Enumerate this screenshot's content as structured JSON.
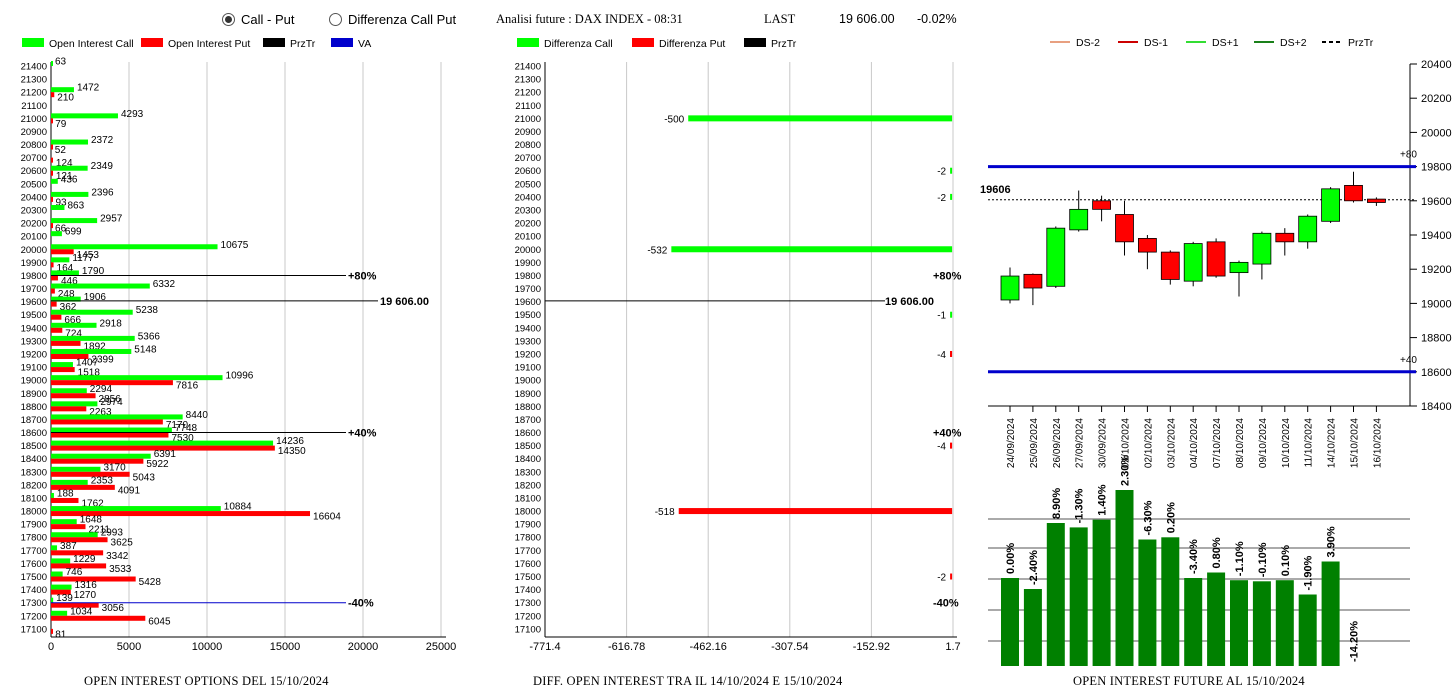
{
  "header": {
    "radio_call_put": "Call - Put",
    "radio_diff": "Differenza Call Put",
    "selected": "call_put",
    "title": "Analisi future : DAX INDEX - 08:31",
    "last_label": "LAST",
    "last_value": "19 606.00",
    "change": "-0.02%"
  },
  "captions": {
    "left": "OPEN INTEREST OPTIONS DEL 15/10/2024",
    "middle": "DIFF. OPEN INTEREST TRA IL 14/10/2024 E 15/10/2024",
    "right": "OPEN INTEREST FUTURE AL 15/10/2024"
  },
  "colors": {
    "call": "#00ff00",
    "put": "#ff0000",
    "prztr": "#000000",
    "va": "#0000cc",
    "future_bar": "#008000",
    "ds_minus2": "#e8a080",
    "ds_minus1": "#cc0000",
    "ds_plus1": "#33dd33",
    "ds_plus2": "#1a801a",
    "grid": "#aaaaaa"
  },
  "chart_data": [
    {
      "type": "bar",
      "orientation": "horizontal",
      "legend": [
        "Open Interest Call",
        "Open Interest Put",
        "PrzTr",
        "VA"
      ],
      "categories": [
        21400,
        21300,
        21200,
        21100,
        21000,
        20900,
        20800,
        20700,
        20600,
        20500,
        20400,
        20300,
        20200,
        20100,
        20000,
        19900,
        19800,
        19700,
        19600,
        19500,
        19400,
        19300,
        19200,
        19100,
        19000,
        18900,
        18800,
        18700,
        18600,
        18500,
        18400,
        18300,
        18200,
        18100,
        18000,
        17900,
        17800,
        17700,
        17600,
        17500,
        17400,
        17300,
        17200,
        17100
      ],
      "series": [
        {
          "name": "Open Interest Call",
          "values": [
            63,
            null,
            1472,
            null,
            4293,
            null,
            2372,
            null,
            2349,
            436,
            2396,
            863,
            2957,
            699,
            10675,
            1177,
            1790,
            6332,
            1906,
            5238,
            2918,
            5366,
            5148,
            1407,
            10996,
            2294,
            2974,
            8440,
            7748,
            14236,
            6391,
            3170,
            2353,
            188,
            10884,
            1648,
            2993,
            387,
            1229,
            746,
            1316,
            139,
            1034,
            null
          ]
        },
        {
          "name": "Open Interest Put",
          "values": [
            null,
            null,
            210,
            null,
            79,
            null,
            52,
            124,
            121,
            null,
            93,
            null,
            66,
            null,
            1453,
            164,
            446,
            248,
            362,
            666,
            724,
            1892,
            2399,
            1518,
            7816,
            2856,
            2263,
            7170,
            7530,
            14350,
            5922,
            5043,
            4091,
            1762,
            16604,
            2211,
            3625,
            3342,
            3533,
            5428,
            1270,
            3056,
            6045,
            81
          ]
        }
      ],
      "lines": [
        {
          "label": "+80%",
          "level": 19800,
          "color": "prztr"
        },
        {
          "label": "19 606.00",
          "level": 19606,
          "color": "prztr"
        },
        {
          "label": "+40%",
          "level": 18600,
          "color": "prztr"
        },
        {
          "label": "-40%",
          "level": 17300,
          "color": "va"
        }
      ],
      "xticks": [
        "0",
        "5000",
        "10000",
        "15000",
        "20000",
        "25000"
      ],
      "xlim": [
        0,
        25000
      ]
    },
    {
      "type": "bar",
      "orientation": "horizontal",
      "legend": [
        "Differenza Call",
        "Differenza Put",
        "PrzTr"
      ],
      "categories": [
        21400,
        21300,
        21200,
        21100,
        21000,
        20900,
        20800,
        20700,
        20600,
        20500,
        20400,
        20300,
        20200,
        20100,
        20000,
        19900,
        19800,
        19700,
        19600,
        19500,
        19400,
        19300,
        19200,
        19100,
        19000,
        18900,
        18800,
        18700,
        18600,
        18500,
        18400,
        18300,
        18200,
        18100,
        18000,
        17900,
        17800,
        17700,
        17600,
        17500,
        17400,
        17300,
        17200,
        17100
      ],
      "bars": [
        {
          "level": 21000,
          "value": -500,
          "series": "call",
          "label": "-500"
        },
        {
          "level": 20600,
          "value": -2,
          "series": "call",
          "label": "-2"
        },
        {
          "level": 20400,
          "value": -2,
          "series": "call",
          "label": "-2"
        },
        {
          "level": 20000,
          "value": -532,
          "series": "call",
          "label": "-532"
        },
        {
          "level": 19500,
          "value": -1,
          "series": "call",
          "label": "-1"
        },
        {
          "level": 19200,
          "value": -4,
          "series": "put",
          "label": "-4"
        },
        {
          "level": 18500,
          "value": -4,
          "series": "put",
          "label": "-4"
        },
        {
          "level": 18000,
          "value": -518,
          "series": "put",
          "label": "-518"
        },
        {
          "level": 17500,
          "value": -2,
          "series": "put",
          "label": "-2"
        }
      ],
      "lines": [
        {
          "label": "+80%",
          "level": 19800
        },
        {
          "label": "19 606.00",
          "level": 19606
        },
        {
          "label": "+40%",
          "level": 18600
        },
        {
          "label": "-40%",
          "level": 17300
        }
      ],
      "xticks": [
        "-771.4",
        "-616.78",
        "-462.16",
        "-307.54",
        "-152.92",
        "1.7"
      ],
      "xlim": [
        -771.4,
        1.7
      ]
    },
    {
      "type": "candlestick",
      "legend": [
        "DS-2",
        "DS-1",
        "DS+1",
        "DS+2",
        "PrzTr"
      ],
      "dates": [
        "24/09/2024",
        "25/09/2024",
        "26/09/2024",
        "27/09/2024",
        "30/09/2024",
        "01/10/2024",
        "02/10/2024",
        "03/10/2024",
        "04/10/2024",
        "07/10/2024",
        "08/10/2024",
        "09/10/2024",
        "10/10/2024",
        "11/10/2024",
        "14/10/2024",
        "15/10/2024",
        "16/10/2024"
      ],
      "candles": [
        {
          "open": 19020,
          "close": 19160,
          "high": 19210,
          "low": 19000
        },
        {
          "open": 19170,
          "close": 19090,
          "high": 19175,
          "low": 18990
        },
        {
          "open": 19100,
          "close": 19440,
          "high": 19450,
          "low": 19090
        },
        {
          "open": 19430,
          "close": 19550,
          "high": 19660,
          "low": 19420
        },
        {
          "open": 19600,
          "close": 19550,
          "high": 19630,
          "low": 19480
        },
        {
          "open": 19520,
          "close": 19360,
          "high": 19600,
          "low": 19280
        },
        {
          "open": 19380,
          "close": 19300,
          "high": 19400,
          "low": 19200
        },
        {
          "open": 19300,
          "close": 19140,
          "high": 19310,
          "low": 19110
        },
        {
          "open": 19130,
          "close": 19350,
          "high": 19360,
          "low": 19100
        },
        {
          "open": 19360,
          "close": 19160,
          "high": 19380,
          "low": 19150
        },
        {
          "open": 19180,
          "close": 19240,
          "high": 19250,
          "low": 19040
        },
        {
          "open": 19230,
          "close": 19410,
          "high": 19420,
          "low": 19140
        },
        {
          "open": 19410,
          "close": 19360,
          "high": 19440,
          "low": 19280
        },
        {
          "open": 19360,
          "close": 19510,
          "high": 19520,
          "low": 19320
        },
        {
          "open": 19480,
          "close": 19670,
          "high": 19680,
          "low": 19470
        },
        {
          "open": 19690,
          "close": 19600,
          "high": 19770,
          "low": 19590
        },
        {
          "open": 19610,
          "close": 19590,
          "high": 19620,
          "low": 19570
        }
      ],
      "hlines": [
        {
          "label": "+80",
          "level": 19800
        },
        {
          "label": "+40",
          "level": 18600
        }
      ],
      "last_label": "19606",
      "last_level": 19606,
      "yticks": [
        "20400",
        "20200",
        "20000",
        "19800",
        "19600",
        "19400",
        "19200",
        "19000",
        "18800",
        "18600",
        "18400"
      ],
      "ylim": [
        18400,
        20400
      ]
    },
    {
      "type": "bar",
      "values": [
        0.0,
        -2.4,
        8.9,
        -1.3,
        1.4,
        2.3,
        -6.3,
        0.2,
        -3.4,
        0.8,
        -1.1,
        -0.1,
        0.1,
        -1.9,
        3.9,
        -14.2
      ],
      "labels": [
        "0.00%",
        "-2.40%",
        "8.90%",
        "-1.30%",
        "1.40%",
        "2.30%",
        "-6.30%",
        "0.20%",
        "-3.40%",
        "0.80%",
        "-1.10%",
        "-0.10%",
        "0.10%",
        "-1.90%",
        "3.90%",
        "-14.20%"
      ],
      "heights": [
        0.8,
        0.7,
        1.3,
        1.26,
        1.33,
        1.6,
        1.15,
        1.17,
        0.8,
        0.85,
        0.78,
        0.77,
        0.78,
        0.65,
        0.95,
        0.0
      ]
    }
  ]
}
